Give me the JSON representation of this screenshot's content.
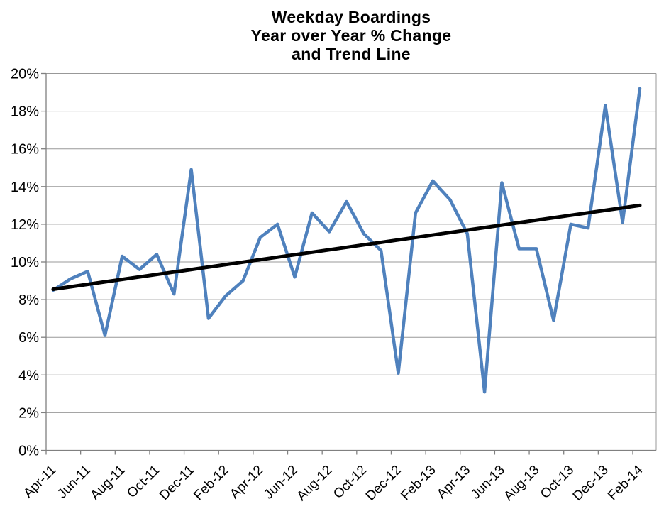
{
  "title": {
    "line1": "Weekday Boardings",
    "line2": "Year over Year % Change",
    "line3": "and Trend Line"
  },
  "chart_data": {
    "type": "line",
    "title": "Weekday Boardings Year over Year % Change and Trend Line",
    "categories": [
      "Apr-11",
      "May-11",
      "Jun-11",
      "Jul-11",
      "Aug-11",
      "Sep-11",
      "Oct-11",
      "Nov-11",
      "Dec-11",
      "Jan-12",
      "Feb-12",
      "Mar-12",
      "Apr-12",
      "May-12",
      "Jun-12",
      "Jul-12",
      "Aug-12",
      "Sep-12",
      "Oct-12",
      "Nov-12",
      "Dec-12",
      "Jan-13",
      "Feb-13",
      "Mar-13",
      "Apr-13",
      "May-13",
      "Jun-13",
      "Jul-13",
      "Aug-13",
      "Sep-13",
      "Oct-13",
      "Nov-13",
      "Dec-13",
      "Jan-14",
      "Feb-14"
    ],
    "x_tick_labels": [
      "Apr-11",
      "Jun-11",
      "Aug-11",
      "Oct-11",
      "Dec-11",
      "Feb-12",
      "Apr-12",
      "Jun-12",
      "Aug-12",
      "Oct-12",
      "Dec-12",
      "Feb-13",
      "Apr-13",
      "Jun-13",
      "Aug-13",
      "Oct-13",
      "Dec-13",
      "Feb-14"
    ],
    "series": [
      {
        "name": "Year over Year % Change",
        "color": "#4F81BD",
        "values": [
          8.5,
          9.1,
          9.5,
          6.1,
          10.3,
          9.6,
          10.4,
          8.3,
          14.9,
          7.0,
          8.2,
          9.0,
          11.3,
          12.0,
          9.2,
          12.6,
          11.6,
          13.2,
          11.5,
          10.6,
          4.1,
          12.6,
          14.3,
          13.3,
          11.5,
          3.1,
          14.2,
          10.7,
          10.7,
          6.9,
          12.0,
          11.8,
          18.3,
          12.1,
          19.2
        ]
      },
      {
        "name": "Trend Line",
        "type": "linear_trend",
        "color": "#000000",
        "start_value": 8.55,
        "end_value": 13.0
      }
    ],
    "ylim": [
      0,
      20
    ],
    "ytick_step": 2,
    "ytick_labels": [
      "0%",
      "2%",
      "4%",
      "6%",
      "8%",
      "10%",
      "12%",
      "14%",
      "16%",
      "18%",
      "20%"
    ],
    "grid": true,
    "legend": "none",
    "xlabel": "",
    "ylabel": ""
  },
  "colors": {
    "series_blue": "#4F81BD",
    "trend_black": "#000000",
    "gridline_gray": "#989898",
    "axis_gray": "#808080",
    "background": "#FFFFFF"
  }
}
